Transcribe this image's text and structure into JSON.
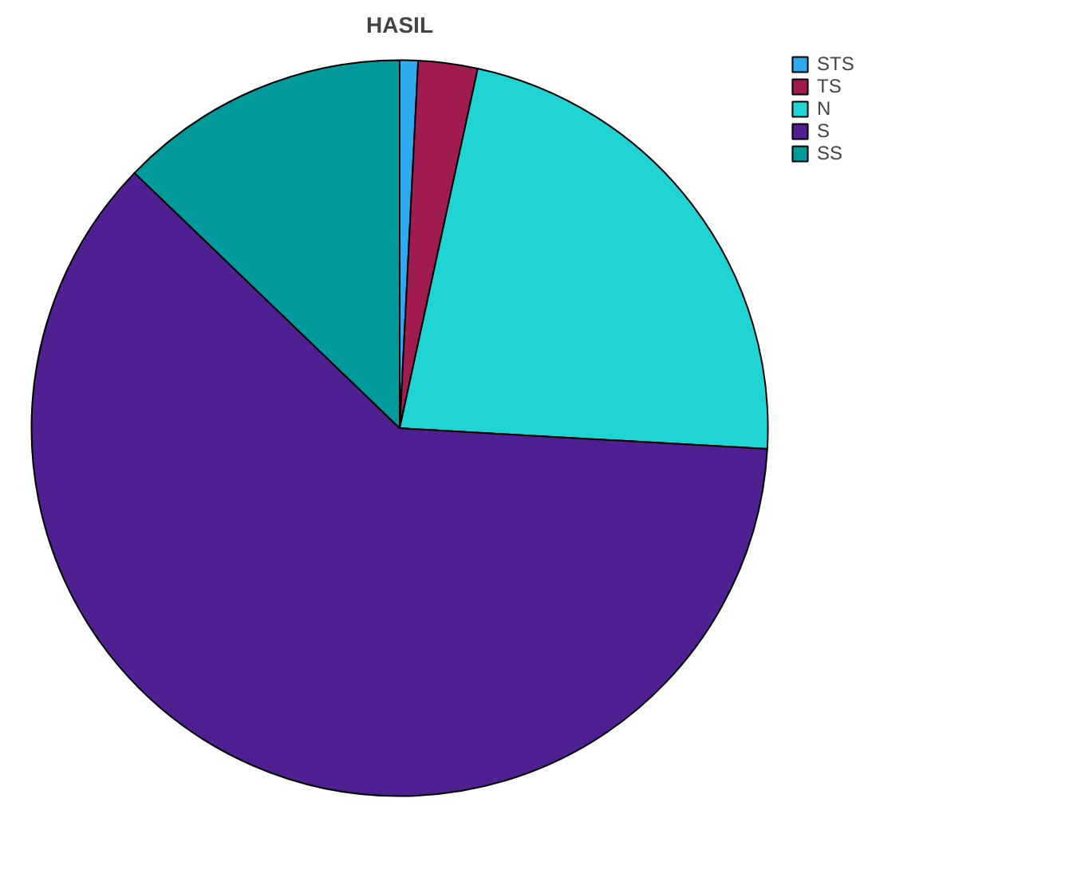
{
  "chart_data": {
    "type": "pie",
    "title": "HASIL",
    "categories": [
      "STS",
      "TS",
      "N",
      "S",
      "SS"
    ],
    "values": [
      0.8,
      2.6,
      22.5,
      61.3,
      12.8
    ],
    "colors": [
      "#2eaaf0",
      "#a01c50",
      "#20d4d4",
      "#4e2092",
      "#009a9a"
    ],
    "legend": "top right"
  }
}
